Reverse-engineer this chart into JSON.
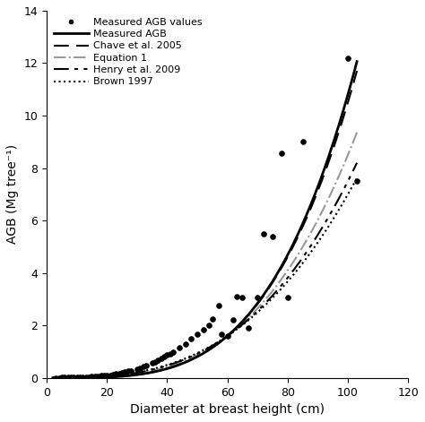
{
  "title": "",
  "xlabel": "Diameter at breast height (cm)",
  "ylabel": "AGB (Mg tree⁻¹)",
  "xlim": [
    0,
    120
  ],
  "ylim": [
    0,
    14
  ],
  "xticks": [
    0,
    20,
    40,
    60,
    80,
    100,
    120
  ],
  "yticks": [
    0,
    2,
    4,
    6,
    8,
    10,
    12,
    14
  ],
  "scatter_x": [
    3,
    4,
    5,
    6,
    7,
    8,
    9,
    10,
    11,
    12,
    13,
    14,
    15,
    16,
    17,
    18,
    19,
    20,
    21,
    22,
    23,
    24,
    25,
    26,
    27,
    28,
    30,
    31,
    32,
    33,
    35,
    36,
    37,
    38,
    39,
    40,
    41,
    42,
    44,
    46,
    48,
    50,
    52,
    54,
    55,
    57,
    58,
    60,
    62,
    63,
    65,
    67,
    70,
    72,
    75,
    78,
    80,
    85,
    100,
    103
  ],
  "scatter_y": [
    0.0,
    0.0,
    0.01,
    0.01,
    0.01,
    0.02,
    0.02,
    0.02,
    0.03,
    0.03,
    0.04,
    0.04,
    0.05,
    0.06,
    0.07,
    0.08,
    0.09,
    0.1,
    0.11,
    0.13,
    0.15,
    0.17,
    0.2,
    0.22,
    0.25,
    0.28,
    0.35,
    0.38,
    0.42,
    0.48,
    0.58,
    0.62,
    0.68,
    0.75,
    0.82,
    0.88,
    0.93,
    1.0,
    1.15,
    1.3,
    1.5,
    1.65,
    1.85,
    2.0,
    2.25,
    2.75,
    1.65,
    1.6,
    2.2,
    3.1,
    3.05,
    1.9,
    3.05,
    5.5,
    5.4,
    8.55,
    3.05,
    9.0,
    12.2,
    7.5
  ],
  "legend_labels": [
    "Measured AGB values",
    "Measured AGB",
    "Chave et al. 2005",
    "Equation 1",
    "Henry et al. 2009",
    "Brown 1997"
  ],
  "background_color": "#ffffff",
  "measured_a": 1.58e-05,
  "measured_b": 2.95,
  "chave_a": 1.45e-05,
  "chave_b": 2.96,
  "eq1_a": 4e-05,
  "eq1_b": 2.7,
  "henry_a": 3.5e-05,
  "henry_b": 2.72,
  "brown_a": 4.5e-05,
  "brown_b": 2.65
}
